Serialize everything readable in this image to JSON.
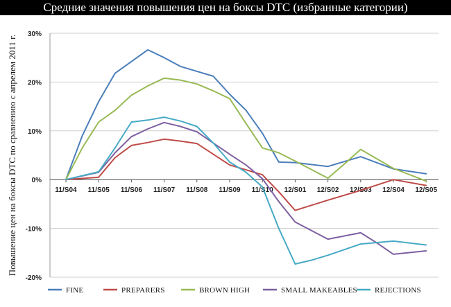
{
  "chart_data": {
    "type": "line",
    "title": "Средние значения повышения цен на боксы DTC (избранные категории)",
    "ylabel": "Повышение цен на боксы DTC по сравнению с апрелем 2011 г.",
    "xlabel": "",
    "categories": [
      "11/S04",
      "11/S05",
      "11/S06",
      "11/S07",
      "11/S08",
      "11/S09",
      "11/S10",
      "12/S01",
      "12/S02",
      "12/S03",
      "12/S04",
      "12/S05"
    ],
    "ylim": [
      -20,
      30
    ],
    "yticks": [
      -20,
      -10,
      0,
      10,
      20,
      30
    ],
    "ytick_labels": [
      "-20%",
      "-10%",
      "0%",
      "10%",
      "20%",
      "30%"
    ],
    "grid": "horizontal",
    "legend_position": "bottom",
    "series": [
      {
        "name": "FINE",
        "color": "#4a7ebb",
        "x": [
          0,
          0.5,
          1,
          1.5,
          2,
          2.5,
          3,
          3.5,
          4,
          4.5,
          5,
          5.5,
          6,
          6.5,
          7,
          8,
          9,
          10,
          11
        ],
        "values": [
          0,
          9,
          16,
          21.8,
          24.2,
          26.6,
          25,
          23.2,
          22.2,
          21.2,
          17.5,
          14.2,
          9.5,
          3.6,
          3.5,
          2.7,
          4.7,
          2.2,
          1.2
        ]
      },
      {
        "name": "PREPARERS",
        "color": "#be4b48",
        "x": [
          0,
          1,
          1.5,
          2,
          2.5,
          3,
          3.5,
          4,
          4.5,
          5,
          5.5,
          6,
          6.5,
          7,
          8,
          9,
          10,
          11
        ],
        "values": [
          0,
          0.5,
          4.5,
          7,
          7.6,
          8.3,
          7.9,
          7.4,
          5.2,
          3,
          2,
          1,
          -2.5,
          -6.3,
          -4.2,
          -2.2,
          0,
          -1.2
        ]
      },
      {
        "name": "BROWN HIGH",
        "color": "#98b954",
        "x": [
          0,
          0.5,
          1,
          1.5,
          2,
          2.5,
          3,
          3.5,
          4,
          4.5,
          5,
          5.5,
          6,
          6.5,
          7,
          8,
          8.5,
          9,
          10,
          11
        ],
        "values": [
          0,
          6.5,
          11.8,
          14.2,
          17.3,
          19.2,
          20.8,
          20.4,
          19.6,
          18.2,
          16.6,
          11.5,
          6.5,
          5.5,
          3.8,
          0.3,
          3.2,
          6.2,
          2.3,
          -0.3
        ]
      },
      {
        "name": "SMALL MAKEABLES",
        "color": "#7d5fa0",
        "x": [
          0,
          1,
          1.5,
          2,
          2.5,
          3,
          3.5,
          4,
          4.5,
          5,
          5.5,
          6,
          6.5,
          7,
          8,
          9,
          9.5,
          10,
          11
        ],
        "values": [
          0,
          1.5,
          5.5,
          8.8,
          10.4,
          11.7,
          10.9,
          9.8,
          7.5,
          5.2,
          3,
          0.2,
          -4.5,
          -8.7,
          -12.2,
          -10.9,
          -13,
          -15.3,
          -14.6
        ]
      },
      {
        "name": "REJECTIONS",
        "color": "#46aac5",
        "x": [
          0,
          1,
          1.5,
          2,
          2.5,
          3,
          3.5,
          4,
          4.5,
          5,
          5.5,
          6,
          6.5,
          7,
          7.5,
          8,
          9,
          10,
          11
        ],
        "values": [
          0,
          1.6,
          6.5,
          11.8,
          12.2,
          12.8,
          12,
          10.9,
          7.5,
          3.6,
          1.5,
          -1.5,
          -10,
          -17.3,
          -16.5,
          -15.5,
          -13.2,
          -12.6,
          -13.4
        ]
      }
    ]
  }
}
